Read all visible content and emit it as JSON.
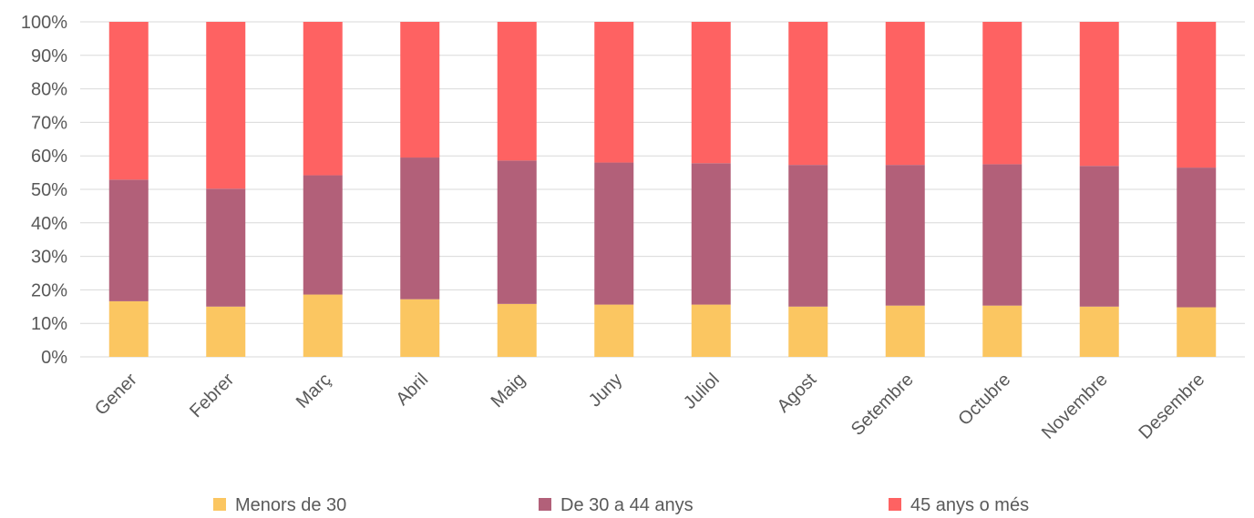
{
  "chart_data": {
    "type": "bar",
    "stacked": true,
    "percent": true,
    "categories": [
      "Gener",
      "Febrer",
      "Març",
      "Abril",
      "Maig",
      "Juny",
      "Juliol",
      "Agost",
      "Setembre",
      "Octubre",
      "Novembre",
      "Desembre"
    ],
    "series": [
      {
        "name": "Menors de 30",
        "color": "#FBC661",
        "values": [
          16.6,
          15.0,
          18.6,
          17.2,
          15.8,
          15.6,
          15.6,
          15.0,
          15.3,
          15.3,
          15.0,
          14.8
        ]
      },
      {
        "name": "De 30 a 44 anys",
        "color": "#B26079",
        "values": [
          36.3,
          35.2,
          35.6,
          42.3,
          42.8,
          42.4,
          42.2,
          42.3,
          42.0,
          42.2,
          42.0,
          41.7
        ]
      },
      {
        "name": "45 anys o més",
        "color": "#FE6262",
        "values": [
          47.1,
          49.8,
          45.8,
          40.5,
          41.4,
          42.0,
          42.2,
          42.7,
          42.7,
          42.5,
          43.0,
          43.5
        ]
      }
    ],
    "ylim": [
      0,
      100
    ],
    "yticks": [
      "0%",
      "10%",
      "20%",
      "30%",
      "40%",
      "50%",
      "60%",
      "70%",
      "80%",
      "90%",
      "100%"
    ],
    "grid": true,
    "legend_position": "bottom",
    "xlabel": "",
    "ylabel": "",
    "title": ""
  }
}
